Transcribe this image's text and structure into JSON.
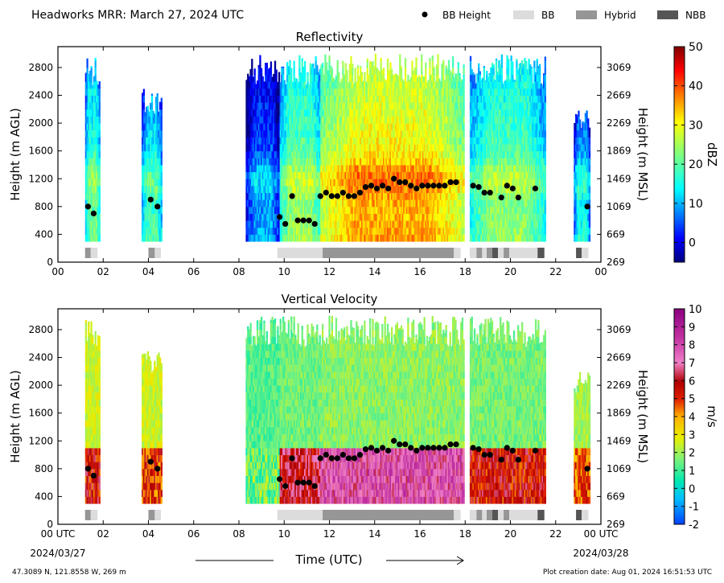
{
  "header": {
    "title": "Headworks MRR:  March 27, 2024 UTC",
    "legend": [
      {
        "label": "BB Height",
        "kind": "dot",
        "color": "#000000"
      },
      {
        "label": "BB",
        "kind": "bar",
        "color": "#dcdcdc"
      },
      {
        "label": "Hybrid",
        "kind": "bar",
        "color": "#969696"
      },
      {
        "label": "NBB",
        "kind": "bar",
        "color": "#555555"
      }
    ]
  },
  "footer": {
    "location": "47.3089 N, 121.8558 W, 269 m",
    "created": "Plot creation date: Aug 01, 2024 16:51:53 UTC",
    "x_title": "Time (UTC)",
    "start_label_time": "00 UTC",
    "start_label_date": "2024/03/27",
    "end_label_time": "00 UTC",
    "end_label_date": "2024/03/28"
  },
  "chart_data": [
    {
      "type": "heatmap",
      "title": "Reflectivity",
      "xlabel": "",
      "ylabel": "Height (m AGL)",
      "ylabel_right": "Height (m MSL)",
      "xlim": [
        0,
        24
      ],
      "ylim": [
        0,
        3100
      ],
      "x_ticks": [
        "00",
        "02",
        "04",
        "06",
        "08",
        "10",
        "12",
        "14",
        "16",
        "18",
        "20",
        "22",
        "00"
      ],
      "y_ticks": [
        0,
        400,
        800,
        1200,
        1600,
        2000,
        2400,
        2800
      ],
      "y_ticks_right": [
        269,
        669,
        1069,
        1469,
        1869,
        2269,
        2669,
        3069
      ],
      "colorbar": {
        "label": "dBZ",
        "min": -5,
        "max": 50,
        "ticks": [
          0,
          10,
          20,
          30,
          40,
          50
        ],
        "colormap": "jet"
      }
    },
    {
      "type": "heatmap",
      "title": "Vertical Velocity",
      "xlabel": "Time (UTC)",
      "ylabel": "Height (m AGL)",
      "ylabel_right": "Height (m MSL)",
      "xlim": [
        0,
        24
      ],
      "ylim": [
        0,
        3100
      ],
      "x_ticks": [
        "00 UTC",
        "02",
        "04",
        "06",
        "08",
        "10",
        "12",
        "14",
        "16",
        "18",
        "20",
        "22",
        "00 UTC"
      ],
      "y_ticks": [
        0,
        400,
        800,
        1200,
        1600,
        2000,
        2400,
        2800
      ],
      "y_ticks_right": [
        269,
        669,
        1069,
        1469,
        1869,
        2269,
        2669,
        3069
      ],
      "colorbar": {
        "label": "m/s",
        "min": -2,
        "max": 10,
        "ticks": [
          -2,
          -1,
          0,
          1,
          2,
          3,
          4,
          5,
          6,
          7,
          8,
          9,
          10
        ],
        "colormap": "velocity"
      }
    }
  ],
  "bb_heights": [
    {
      "t": 1.33,
      "h": 800
    },
    {
      "t": 1.58,
      "h": 700
    },
    {
      "t": 4.1,
      "h": 900
    },
    {
      "t": 4.4,
      "h": 800
    },
    {
      "t": 9.8,
      "h": 650
    },
    {
      "t": 10.05,
      "h": 550
    },
    {
      "t": 10.35,
      "h": 950
    },
    {
      "t": 10.6,
      "h": 600
    },
    {
      "t": 10.85,
      "h": 600
    },
    {
      "t": 11.1,
      "h": 600
    },
    {
      "t": 11.35,
      "h": 550
    },
    {
      "t": 11.6,
      "h": 950
    },
    {
      "t": 11.85,
      "h": 1000
    },
    {
      "t": 12.1,
      "h": 950
    },
    {
      "t": 12.35,
      "h": 950
    },
    {
      "t": 12.6,
      "h": 1000
    },
    {
      "t": 12.85,
      "h": 950
    },
    {
      "t": 13.1,
      "h": 950
    },
    {
      "t": 13.35,
      "h": 1000
    },
    {
      "t": 13.6,
      "h": 1080
    },
    {
      "t": 13.85,
      "h": 1100
    },
    {
      "t": 14.1,
      "h": 1060
    },
    {
      "t": 14.35,
      "h": 1100
    },
    {
      "t": 14.6,
      "h": 1060
    },
    {
      "t": 14.85,
      "h": 1200
    },
    {
      "t": 15.1,
      "h": 1150
    },
    {
      "t": 15.35,
      "h": 1150
    },
    {
      "t": 15.6,
      "h": 1100
    },
    {
      "t": 15.85,
      "h": 1060
    },
    {
      "t": 16.1,
      "h": 1100
    },
    {
      "t": 16.35,
      "h": 1100
    },
    {
      "t": 16.6,
      "h": 1100
    },
    {
      "t": 16.85,
      "h": 1100
    },
    {
      "t": 17.1,
      "h": 1100
    },
    {
      "t": 17.35,
      "h": 1150
    },
    {
      "t": 17.6,
      "h": 1150
    },
    {
      "t": 18.35,
      "h": 1100
    },
    {
      "t": 18.6,
      "h": 1080
    },
    {
      "t": 18.85,
      "h": 1000
    },
    {
      "t": 19.1,
      "h": 1000
    },
    {
      "t": 19.6,
      "h": 930
    },
    {
      "t": 19.85,
      "h": 1100
    },
    {
      "t": 20.1,
      "h": 1060
    },
    {
      "t": 20.35,
      "h": 930
    },
    {
      "t": 21.1,
      "h": 1060
    },
    {
      "t": 23.4,
      "h": 800
    }
  ],
  "bb_type_bar": [
    {
      "start": 1.2,
      "end": 1.45,
      "type": "Hybrid"
    },
    {
      "start": 1.45,
      "end": 1.75,
      "type": "BB"
    },
    {
      "start": 4.0,
      "end": 4.28,
      "type": "Hybrid"
    },
    {
      "start": 4.28,
      "end": 4.55,
      "type": "BB"
    },
    {
      "start": 9.7,
      "end": 11.7,
      "type": "BB"
    },
    {
      "start": 11.7,
      "end": 17.5,
      "type": "Hybrid"
    },
    {
      "start": 17.5,
      "end": 17.8,
      "type": "BB"
    },
    {
      "start": 18.2,
      "end": 18.5,
      "type": "BB"
    },
    {
      "start": 18.5,
      "end": 18.75,
      "type": "Hybrid"
    },
    {
      "start": 18.75,
      "end": 18.95,
      "type": "BB"
    },
    {
      "start": 18.95,
      "end": 19.2,
      "type": "Hybrid"
    },
    {
      "start": 19.2,
      "end": 19.45,
      "type": "NBB"
    },
    {
      "start": 19.45,
      "end": 19.7,
      "type": "BB"
    },
    {
      "start": 19.7,
      "end": 19.95,
      "type": "Hybrid"
    },
    {
      "start": 19.95,
      "end": 21.2,
      "type": "BB"
    },
    {
      "start": 21.2,
      "end": 21.5,
      "type": "NBB"
    },
    {
      "start": 22.9,
      "end": 23.15,
      "type": "NBB"
    },
    {
      "start": 23.15,
      "end": 23.45,
      "type": "BB"
    }
  ],
  "echo_segments": [
    {
      "start": 1.2,
      "end": 1.85,
      "top": 2950,
      "refl": 22,
      "vel_low": 5.5,
      "vel_high": 2.5
    },
    {
      "start": 3.7,
      "end": 4.55,
      "top": 2500,
      "refl": 20,
      "vel_low": 5.0,
      "vel_high": 2.5
    },
    {
      "start": 8.3,
      "end": 9.8,
      "top": 3000,
      "refl": 10,
      "vel_low": 1.5,
      "vel_high": 1.2
    },
    {
      "start": 9.8,
      "end": 11.6,
      "top": 3000,
      "refl": 25,
      "vel_low": 6.0,
      "vel_high": 1.5
    },
    {
      "start": 11.6,
      "end": 17.9,
      "top": 3000,
      "refl": 36,
      "vel_low": 7.5,
      "vel_high": 1.8
    },
    {
      "start": 18.2,
      "end": 21.5,
      "top": 3000,
      "refl": 24,
      "vel_low": 5.5,
      "vel_high": 1.6
    },
    {
      "start": 22.8,
      "end": 23.5,
      "top": 2200,
      "refl": 16,
      "vel_low": 4.5,
      "vel_high": 2.0
    }
  ]
}
